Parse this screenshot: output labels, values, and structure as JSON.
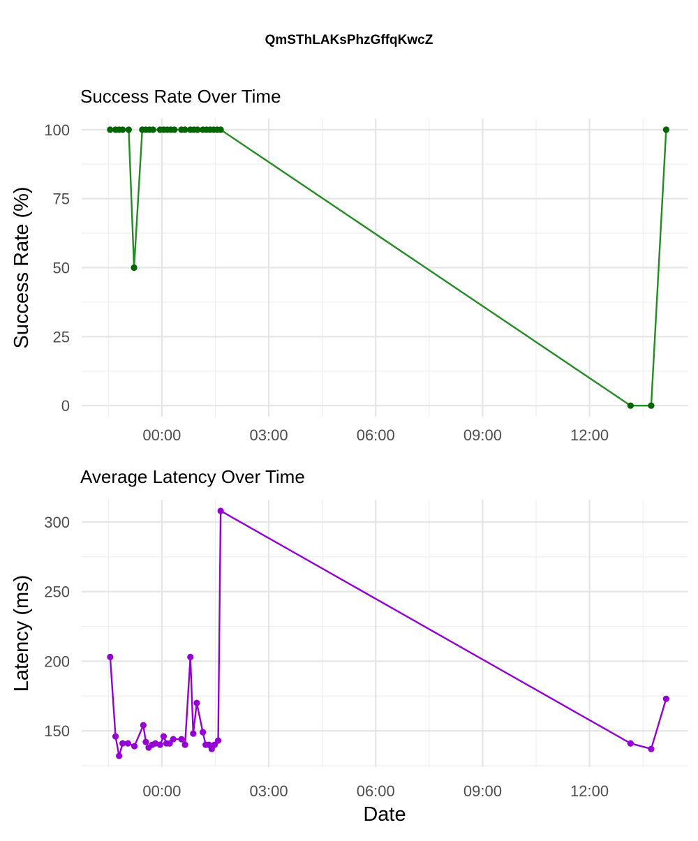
{
  "figure_title": "QmSThLAKsPhzGffqKwcZ",
  "chart_data": [
    {
      "type": "line",
      "title": "Success Rate Over Time",
      "xlabel": "",
      "ylabel": "Success Rate (%)",
      "x_unit": "hours relative to 00:00",
      "xlim": [
        -2.25,
        14.75
      ],
      "ylim": [
        -4,
        104
      ],
      "x_ticks": [
        0,
        3,
        6,
        9,
        12
      ],
      "x_tick_labels": [
        "00:00",
        "03:00",
        "06:00",
        "09:00",
        "12:00"
      ],
      "y_ticks": [
        0,
        25,
        50,
        75,
        100
      ],
      "y_tick_labels": [
        "0",
        "25",
        "50",
        "75",
        "100"
      ],
      "grid": true,
      "color": "#228b22",
      "point_color": "#006400",
      "series": [
        {
          "x": [
            -1.45,
            -1.3,
            -1.2,
            -1.1,
            -0.93,
            -0.78,
            -0.55,
            -0.45,
            -0.35,
            -0.25,
            -0.05,
            0.05,
            0.15,
            0.25,
            0.35,
            0.55,
            0.65,
            0.8,
            0.9,
            1.0,
            1.15,
            1.25,
            1.35,
            1.45,
            1.55,
            1.65,
            13.15,
            13.73,
            14.15
          ],
          "y": [
            100,
            100,
            100,
            100,
            100,
            50,
            100,
            100,
            100,
            100,
            100,
            100,
            100,
            100,
            100,
            100,
            100,
            100,
            100,
            100,
            100,
            100,
            100,
            100,
            100,
            100,
            0,
            0,
            100
          ]
        }
      ]
    },
    {
      "type": "line",
      "title": "Average Latency Over Time",
      "xlabel": "Date",
      "ylabel": "Latency (ms)",
      "x_unit": "hours relative to 00:00",
      "xlim": [
        -2.25,
        14.75
      ],
      "ylim": [
        124,
        316
      ],
      "x_ticks": [
        0,
        3,
        6,
        9,
        12
      ],
      "x_tick_labels": [
        "00:00",
        "03:00",
        "06:00",
        "09:00",
        "12:00"
      ],
      "y_ticks": [
        150,
        200,
        250,
        300
      ],
      "y_tick_labels": [
        "150",
        "200",
        "250",
        "300"
      ],
      "grid": true,
      "color": "#9400d3",
      "point_color": "#9400d3",
      "series": [
        {
          "x": [
            -1.45,
            -1.3,
            -1.2,
            -1.1,
            -0.95,
            -0.77,
            -0.52,
            -0.45,
            -0.37,
            -0.27,
            -0.18,
            -0.05,
            0.05,
            0.13,
            0.22,
            0.32,
            0.55,
            0.65,
            0.8,
            0.88,
            0.98,
            1.15,
            1.23,
            1.32,
            1.4,
            1.48,
            1.58,
            1.65,
            13.15,
            13.73,
            14.15
          ],
          "y": [
            203,
            146,
            132,
            141,
            141,
            139,
            154,
            142,
            138,
            140,
            141,
            140,
            146,
            141,
            141,
            144,
            144,
            140,
            203,
            148,
            170,
            149,
            140,
            140,
            137,
            140,
            143,
            308,
            141,
            137,
            173
          ]
        }
      ]
    }
  ]
}
